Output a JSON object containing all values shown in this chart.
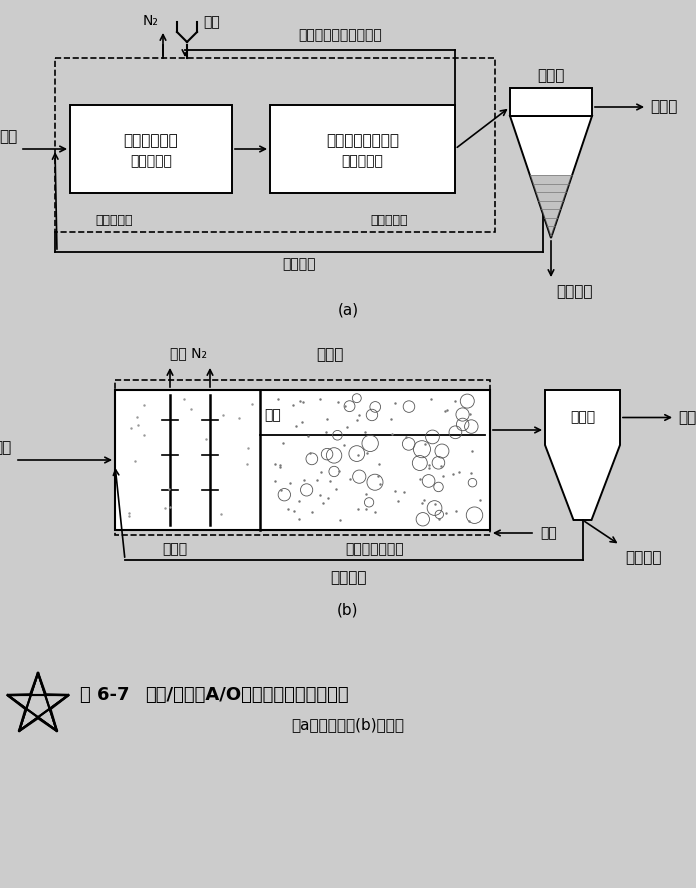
{
  "bg_color": "#cccccc",
  "white": "#ffffff",
  "black": "#000000",
  "fig_label_a": "(a)",
  "fig_label_b": "(b)",
  "fig_number": "图 6-7",
  "fig_title": "缺氧/好氧（A/O）脱氮工艺流程示意图",
  "fig_subtitle": "（a）分建式；(b)合建式",
  "text_wushui_a": "污水",
  "text_fxhfyq": "反硝化反应器",
  "text_queyangchi": "（缺氧池）",
  "text_yanghua": "氧化、氨化、硝化",
  "text_haoyangchi": "（好氧池）",
  "text_neixunhuan_a": "内循环（硝化液回流）",
  "text_huiliuwuni_a": "回流污泥",
  "text_chendiangchi_a": "沉淀池",
  "text_chuliushui_a": "处理水",
  "text_shengyu_a": "剩余污泥",
  "text_jiaoba_a": "搅拌",
  "text_N2_a": "N₂",
  "text_wushui_b": "污水",
  "text_neixunhuan_b": "内循环",
  "text_jiaoba_b": "搅拌 N₂",
  "text_dangban": "挡板",
  "text_fxh_b": "反硝化",
  "text_chuyoujiwu": "除有机物、硝化",
  "text_kongqi": "空气",
  "text_chendiangchi_b": "沉淀池",
  "text_chuliushui_b": "处理水",
  "text_huiliuwuni_b": "回流污泥",
  "text_shengyu_b": "剩余污泥"
}
